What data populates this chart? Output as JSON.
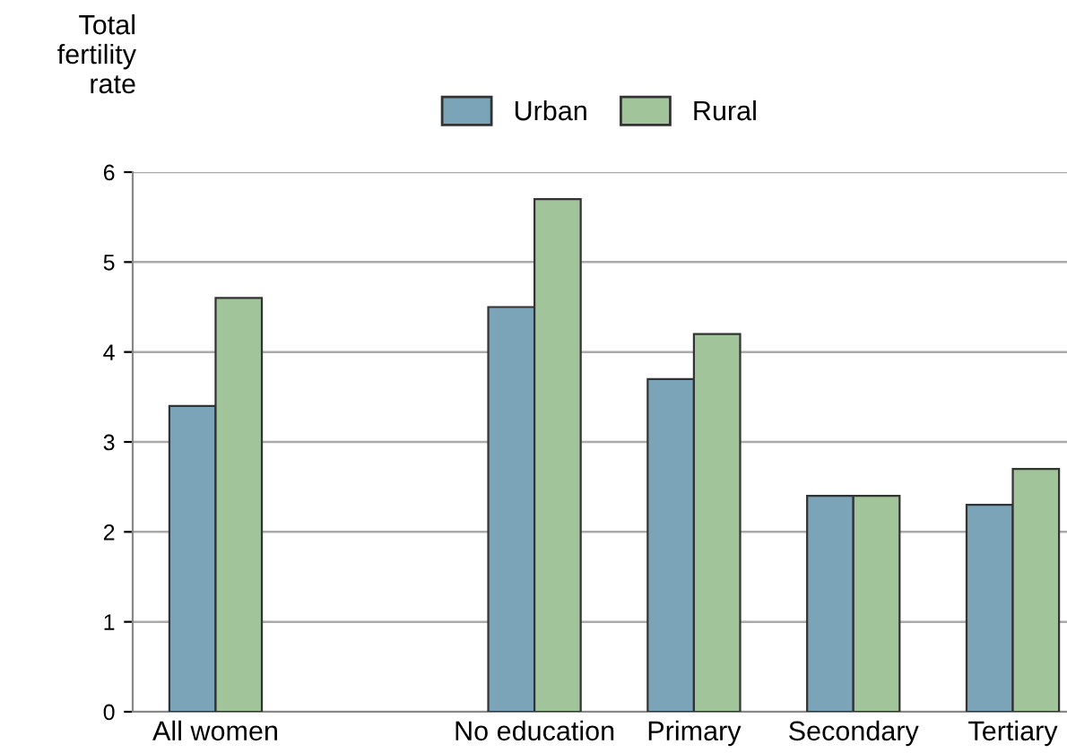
{
  "chart_data": {
    "type": "bar",
    "ylabel": "Total\nfertility\nrate",
    "categories": [
      "All women",
      null,
      "No education",
      "Primary",
      "Secondary",
      "Tertiary"
    ],
    "series": [
      {
        "name": "Urban",
        "color": "#7ba4b8",
        "values": [
          3.4,
          null,
          4.5,
          3.7,
          2.4,
          2.3
        ]
      },
      {
        "name": "Rural",
        "color": "#a2c49a",
        "values": [
          4.6,
          null,
          5.7,
          4.2,
          2.4,
          2.7
        ]
      }
    ],
    "ylim": [
      0,
      6
    ],
    "yticks": [
      0,
      1,
      2,
      3,
      4,
      5,
      6
    ],
    "grid": "y",
    "legend": "top"
  }
}
